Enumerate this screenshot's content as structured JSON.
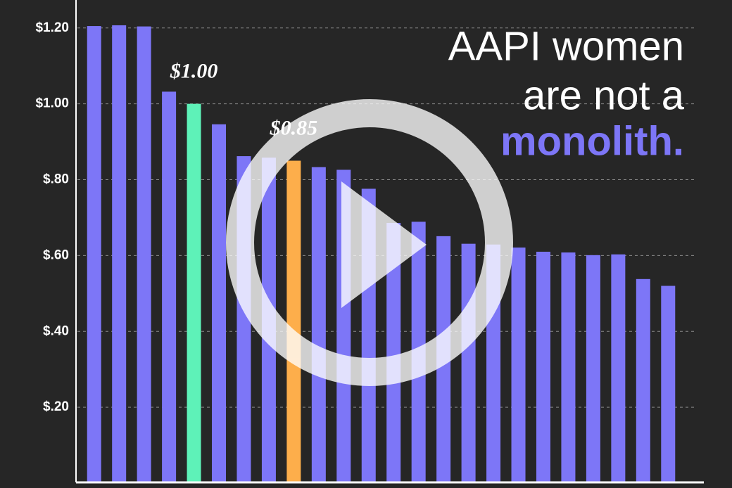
{
  "chart_data": {
    "type": "bar",
    "title_lines": [
      "AAPI women",
      "are not a",
      "monolith."
    ],
    "categories": [
      null,
      null,
      null,
      null,
      null,
      null,
      null,
      null,
      null,
      null,
      null,
      null,
      null,
      null,
      null,
      null,
      null,
      null,
      null,
      null,
      null,
      null,
      null,
      null
    ],
    "values": [
      1.205,
      1.207,
      1.204,
      1.032,
      1.0,
      0.946,
      0.862,
      0.858,
      0.85,
      0.833,
      0.826,
      0.776,
      0.686,
      0.689,
      0.651,
      0.631,
      0.629,
      0.621,
      0.61,
      0.608,
      0.601,
      0.603,
      0.538,
      0.52
    ],
    "value_labels": [
      null,
      null,
      null,
      null,
      "$1.00",
      null,
      null,
      null,
      "$0.85",
      null,
      null,
      null,
      null,
      null,
      null,
      null,
      null,
      null,
      null,
      null,
      null,
      null,
      null,
      null
    ],
    "colors": [
      "#7d76f7",
      "#7d76f7",
      "#7d76f7",
      "#7d76f7",
      "#5ef2b8",
      "#7d76f7",
      "#7d76f7",
      "#7d76f7",
      "#fdae4b",
      "#7d76f7",
      "#7d76f7",
      "#7d76f7",
      "#7d76f7",
      "#7d76f7",
      "#7d76f7",
      "#7d76f7",
      "#7d76f7",
      "#7d76f7",
      "#7d76f7",
      "#7d76f7",
      "#7d76f7",
      "#7d76f7",
      "#7d76f7",
      "#7d76f7"
    ],
    "ylim": [
      0,
      1.27
    ],
    "yticks": [
      {
        "value": 0.2,
        "label": "$.20"
      },
      {
        "value": 0.4,
        "label": "$.40"
      },
      {
        "value": 0.6,
        "label": "$.60"
      },
      {
        "value": 0.8,
        "label": "$.80"
      },
      {
        "value": 1.0,
        "label": "$1.00"
      },
      {
        "value": 1.2,
        "label": "$1.20"
      }
    ],
    "grid": true
  }
}
